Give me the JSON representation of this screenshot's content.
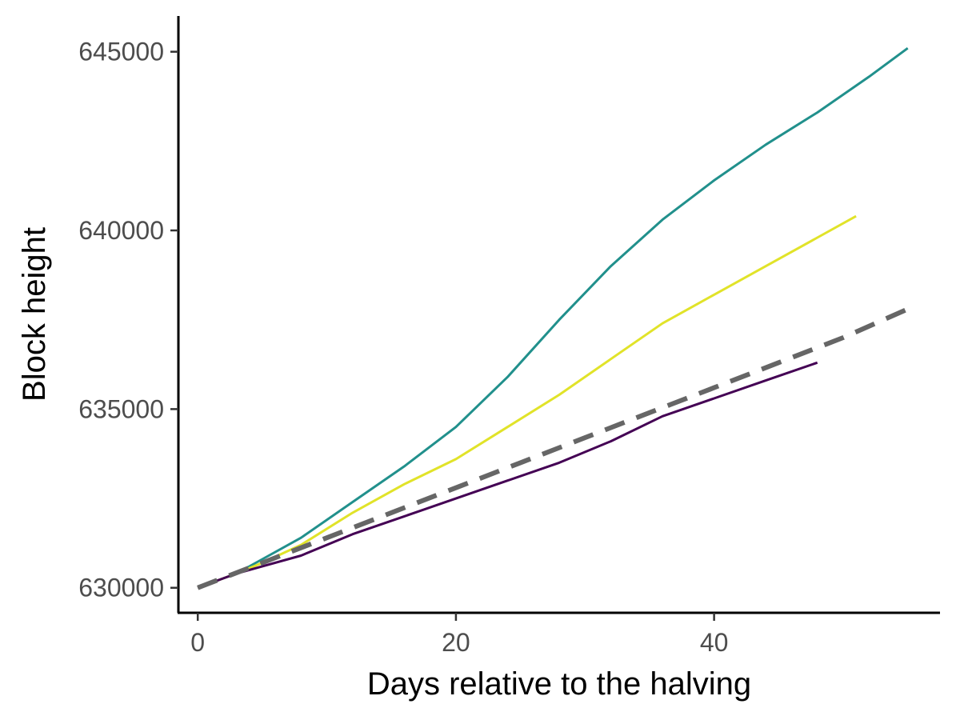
{
  "chart_data": {
    "type": "line",
    "title": "",
    "xlabel": "Days relative to the halving",
    "ylabel": "Block height",
    "xlim": [
      -1.5,
      57.5
    ],
    "ylim": [
      629300,
      646000
    ],
    "x_ticks": [
      0,
      20,
      40
    ],
    "y_ticks": [
      630000,
      635000,
      640000,
      645000
    ],
    "x_tick_labels": [
      "0",
      "20",
      "40"
    ],
    "y_tick_labels": [
      "630000",
      "635000",
      "640000",
      "645000"
    ],
    "grid": false,
    "legend": "none",
    "series": [
      {
        "color": "#21908C",
        "dashed": false,
        "x": [
          0,
          3,
          5,
          8,
          12,
          16,
          20,
          24,
          28,
          32,
          36,
          40,
          44,
          48,
          52,
          55
        ],
        "y": [
          630000,
          630400,
          630800,
          631400,
          632400,
          633400,
          634500,
          635900,
          637500,
          639000,
          640300,
          641400,
          642400,
          643300,
          644300,
          645100
        ]
      },
      {
        "color": "#E1E329",
        "dashed": false,
        "x": [
          0,
          3,
          5,
          8,
          12,
          16,
          20,
          24,
          28,
          32,
          36,
          40,
          44,
          48,
          51
        ],
        "y": [
          630000,
          630400,
          630700,
          631200,
          632100,
          632900,
          633600,
          634500,
          635400,
          636400,
          637400,
          638200,
          639000,
          639800,
          640400
        ]
      },
      {
        "color": "#440154",
        "dashed": false,
        "x": [
          0,
          3,
          5,
          8,
          12,
          16,
          20,
          24,
          28,
          32,
          36,
          40,
          44,
          48
        ],
        "y": [
          630000,
          630400,
          630600,
          630900,
          631500,
          632000,
          632500,
          633000,
          633500,
          634100,
          634800,
          635300,
          635800,
          636300
        ]
      },
      {
        "color": "#666666",
        "dashed": true,
        "x": [
          0,
          5,
          10,
          15,
          20,
          25,
          30,
          35,
          40,
          45,
          50,
          55
        ],
        "y": [
          630000,
          630700,
          631400,
          632100,
          632800,
          633500,
          634200,
          634900,
          635600,
          636300,
          637000,
          637800
        ]
      }
    ]
  }
}
